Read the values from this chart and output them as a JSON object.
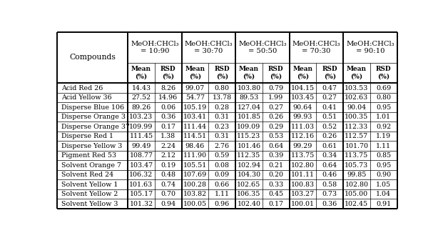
{
  "compounds": [
    "Acid Red 26",
    "Acid Yellow 36",
    "Disperse Blue 106",
    "Disperse Orange 3",
    "Disperse Orange 37",
    "Disperse Red 1",
    "Disperse Yellow 3",
    "Pigment Red 53",
    "Solvent Orange 7",
    "Solvent Red 24",
    "Solvent Yellow 1",
    "Solvent Yellow 2",
    "Solvent Yellow 3"
  ],
  "ratios": [
    "10:90",
    "30:70",
    "50:50",
    "70:30",
    "90:10"
  ],
  "table_data": [
    [
      [
        14.43,
        8.26
      ],
      [
        99.07,
        0.8
      ],
      [
        103.8,
        0.79
      ],
      [
        104.15,
        0.47
      ],
      [
        103.53,
        0.69
      ]
    ],
    [
      [
        27.52,
        14.96
      ],
      [
        54.77,
        13.78
      ],
      [
        89.53,
        1.99
      ],
      [
        103.45,
        0.27
      ],
      [
        102.63,
        0.8
      ]
    ],
    [
      [
        89.26,
        0.06
      ],
      [
        105.19,
        0.28
      ],
      [
        127.04,
        0.27
      ],
      [
        90.64,
        0.41
      ],
      [
        90.04,
        0.95
      ]
    ],
    [
      [
        103.23,
        0.36
      ],
      [
        103.41,
        0.31
      ],
      [
        101.85,
        0.26
      ],
      [
        99.93,
        0.51
      ],
      [
        100.35,
        1.01
      ]
    ],
    [
      [
        109.99,
        0.17
      ],
      [
        111.44,
        0.23
      ],
      [
        109.09,
        0.29
      ],
      [
        111.03,
        0.52
      ],
      [
        112.33,
        0.92
      ]
    ],
    [
      [
        111.45,
        1.38
      ],
      [
        114.51,
        0.31
      ],
      [
        115.23,
        0.53
      ],
      [
        112.16,
        0.26
      ],
      [
        112.57,
        1.19
      ]
    ],
    [
      [
        99.49,
        2.24
      ],
      [
        98.46,
        2.76
      ],
      [
        101.46,
        0.64
      ],
      [
        99.29,
        0.61
      ],
      [
        101.7,
        1.11
      ]
    ],
    [
      [
        108.77,
        2.12
      ],
      [
        111.9,
        0.59
      ],
      [
        112.35,
        0.39
      ],
      [
        113.75,
        0.34
      ],
      [
        113.75,
        0.85
      ]
    ],
    [
      [
        103.47,
        0.19
      ],
      [
        105.51,
        0.08
      ],
      [
        102.94,
        0.21
      ],
      [
        102.8,
        0.64
      ],
      [
        105.73,
        0.95
      ]
    ],
    [
      [
        106.32,
        0.48
      ],
      [
        107.69,
        0.09
      ],
      [
        104.3,
        0.2
      ],
      [
        101.11,
        0.46
      ],
      [
        99.85,
        0.9
      ]
    ],
    [
      [
        101.63,
        0.74
      ],
      [
        100.28,
        0.66
      ],
      [
        102.65,
        0.33
      ],
      [
        100.83,
        0.58
      ],
      [
        102.8,
        1.05
      ]
    ],
    [
      [
        105.17,
        0.7
      ],
      [
        103.82,
        1.11
      ],
      [
        106.35,
        0.45
      ],
      [
        103.27,
        0.73
      ],
      [
        105.0,
        1.04
      ]
    ],
    [
      [
        101.32,
        0.94
      ],
      [
        100.05,
        0.96
      ],
      [
        102.4,
        0.17
      ],
      [
        100.01,
        0.36
      ],
      [
        102.45,
        0.91
      ]
    ]
  ],
  "compounds_label": "Compounds",
  "bg_color": "#ffffff",
  "border_color": "#000000",
  "data_font_size": 6.8,
  "header_font_size": 7.2,
  "compounds_font_size": 7.8
}
